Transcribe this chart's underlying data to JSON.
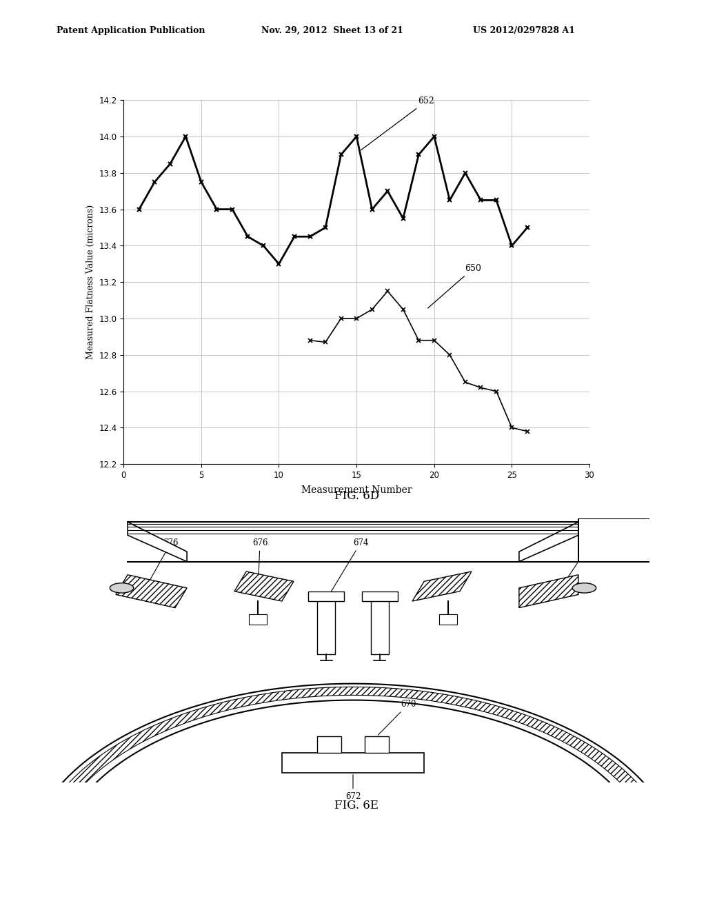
{
  "header_left": "Patent Application Publication",
  "header_mid": "Nov. 29, 2012  Sheet 13 of 21",
  "header_right": "US 2012/0297828 A1",
  "fig6d_title": "FIG. 6D",
  "fig6e_title": "FIG. 6E",
  "xlabel": "Measurement Number",
  "ylabel": "Measured Flatness Value (microns)",
  "xlim": [
    0,
    30
  ],
  "ylim": [
    12.2,
    14.2
  ],
  "yticks": [
    12.2,
    12.4,
    12.6,
    12.8,
    13.0,
    13.2,
    13.4,
    13.6,
    13.8,
    14.0,
    14.2
  ],
  "xticks": [
    0,
    5,
    10,
    15,
    20,
    25,
    30
  ],
  "series652_x": [
    1,
    2,
    3,
    4,
    5,
    6,
    7,
    8,
    9,
    10,
    11,
    12,
    13,
    14,
    15,
    16,
    17,
    18,
    19,
    20,
    21,
    22,
    23,
    24,
    25,
    26
  ],
  "series652_y": [
    13.6,
    13.75,
    13.85,
    14.0,
    13.75,
    13.6,
    13.6,
    13.45,
    13.4,
    13.3,
    13.45,
    13.45,
    13.5,
    13.9,
    14.0,
    13.6,
    13.7,
    13.55,
    13.9,
    14.0,
    13.65,
    13.8,
    13.65,
    13.65,
    13.4,
    13.5
  ],
  "series650_x": [
    12,
    13,
    14,
    15,
    16,
    17,
    18,
    19,
    20,
    21,
    22,
    23,
    24,
    25,
    26
  ],
  "series650_y": [
    12.88,
    12.87,
    13.0,
    13.0,
    13.05,
    13.15,
    13.05,
    12.88,
    12.88,
    12.8,
    12.65,
    12.62,
    12.6,
    12.4,
    12.38
  ],
  "label652": "652",
  "label650": "650",
  "bg_color": "#ffffff",
  "grid_color": "#bbbbbb"
}
